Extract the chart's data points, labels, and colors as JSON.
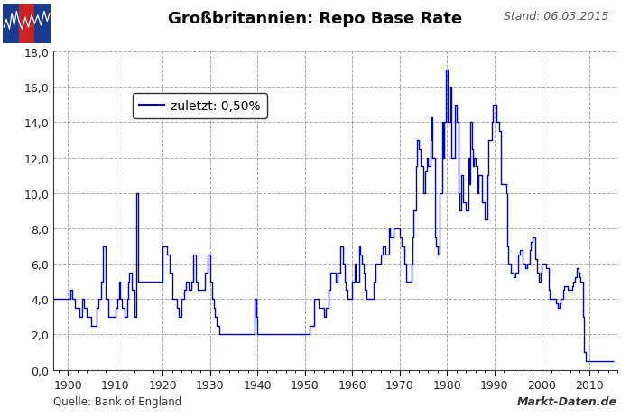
{
  "title": "Großbritannien: Repo Base Rate",
  "stand": "Stand: 06.03.2015",
  "source_left": "Quelle: Bank of England",
  "source_right": "Markt-Daten.de",
  "legend_text": "zuletzt: 0,50%",
  "ylim": [
    0,
    18
  ],
  "yticks": [
    0.0,
    2.0,
    4.0,
    6.0,
    8.0,
    10.0,
    12.0,
    14.0,
    16.0,
    18.0
  ],
  "xlim": [
    1897,
    2016
  ],
  "xticks": [
    1900,
    1910,
    1920,
    1930,
    1940,
    1950,
    1960,
    1970,
    1980,
    1990,
    2000,
    2010
  ],
  "line_color": "#0000cc",
  "bg_color": "#ffffff",
  "plot_bg_color": "#ffffff",
  "grid_color": "#aaaaaa",
  "title_color": "#000000",
  "stand_color": "#555555",
  "data": [
    [
      1897.0,
      4.0
    ],
    [
      1900.0,
      4.0
    ],
    [
      1900.5,
      4.5
    ],
    [
      1901.0,
      4.0
    ],
    [
      1901.5,
      3.5
    ],
    [
      1902.0,
      3.5
    ],
    [
      1902.5,
      3.0
    ],
    [
      1903.0,
      4.0
    ],
    [
      1903.5,
      3.5
    ],
    [
      1904.0,
      3.0
    ],
    [
      1905.0,
      2.5
    ],
    [
      1906.0,
      3.5
    ],
    [
      1906.5,
      4.0
    ],
    [
      1907.0,
      5.0
    ],
    [
      1907.5,
      7.0
    ],
    [
      1908.0,
      4.0
    ],
    [
      1908.5,
      3.0
    ],
    [
      1909.0,
      3.0
    ],
    [
      1909.5,
      3.0
    ],
    [
      1910.0,
      3.5
    ],
    [
      1910.5,
      4.0
    ],
    [
      1910.75,
      5.0
    ],
    [
      1911.0,
      4.0
    ],
    [
      1911.5,
      3.5
    ],
    [
      1912.0,
      3.0
    ],
    [
      1912.5,
      4.0
    ],
    [
      1912.75,
      5.0
    ],
    [
      1913.0,
      5.5
    ],
    [
      1913.5,
      4.5
    ],
    [
      1914.0,
      3.0
    ],
    [
      1914.5,
      10.0
    ],
    [
      1914.75,
      5.0
    ],
    [
      1915.0,
      5.0
    ],
    [
      1916.0,
      5.0
    ],
    [
      1917.0,
      5.0
    ],
    [
      1918.0,
      5.0
    ],
    [
      1919.0,
      5.0
    ],
    [
      1920.0,
      7.0
    ],
    [
      1921.0,
      6.5
    ],
    [
      1921.5,
      5.5
    ],
    [
      1922.0,
      4.0
    ],
    [
      1923.0,
      3.5
    ],
    [
      1923.5,
      3.0
    ],
    [
      1924.0,
      4.0
    ],
    [
      1924.5,
      4.5
    ],
    [
      1925.0,
      5.0
    ],
    [
      1925.5,
      4.5
    ],
    [
      1926.0,
      5.0
    ],
    [
      1926.5,
      6.5
    ],
    [
      1927.0,
      5.0
    ],
    [
      1927.5,
      4.5
    ],
    [
      1928.0,
      4.5
    ],
    [
      1929.0,
      5.5
    ],
    [
      1929.5,
      6.5
    ],
    [
      1930.0,
      5.0
    ],
    [
      1930.5,
      4.0
    ],
    [
      1930.75,
      3.5
    ],
    [
      1931.0,
      3.0
    ],
    [
      1931.5,
      2.5
    ],
    [
      1932.0,
      2.0
    ],
    [
      1932.5,
      2.0
    ],
    [
      1933.0,
      2.0
    ],
    [
      1935.0,
      2.0
    ],
    [
      1937.0,
      2.0
    ],
    [
      1939.0,
      2.0
    ],
    [
      1939.5,
      4.0
    ],
    [
      1939.75,
      3.0
    ],
    [
      1940.0,
      2.0
    ],
    [
      1942.0,
      2.0
    ],
    [
      1945.0,
      2.0
    ],
    [
      1950.0,
      2.0
    ],
    [
      1951.0,
      2.5
    ],
    [
      1951.5,
      2.5
    ],
    [
      1952.0,
      4.0
    ],
    [
      1952.5,
      4.0
    ],
    [
      1953.0,
      3.5
    ],
    [
      1954.0,
      3.0
    ],
    [
      1954.5,
      3.5
    ],
    [
      1955.0,
      4.5
    ],
    [
      1955.5,
      5.5
    ],
    [
      1956.0,
      5.5
    ],
    [
      1956.5,
      5.0
    ],
    [
      1957.0,
      5.5
    ],
    [
      1957.5,
      7.0
    ],
    [
      1958.0,
      6.0
    ],
    [
      1958.5,
      5.0
    ],
    [
      1958.75,
      4.5
    ],
    [
      1959.0,
      4.0
    ],
    [
      1959.5,
      4.0
    ],
    [
      1960.0,
      5.0
    ],
    [
      1960.5,
      6.0
    ],
    [
      1960.75,
      5.0
    ],
    [
      1961.0,
      5.0
    ],
    [
      1961.5,
      7.0
    ],
    [
      1961.75,
      6.5
    ],
    [
      1962.0,
      6.0
    ],
    [
      1962.5,
      5.5
    ],
    [
      1962.75,
      4.5
    ],
    [
      1963.0,
      4.0
    ],
    [
      1964.0,
      4.0
    ],
    [
      1964.5,
      5.0
    ],
    [
      1965.0,
      6.0
    ],
    [
      1965.5,
      6.0
    ],
    [
      1966.0,
      6.5
    ],
    [
      1966.5,
      7.0
    ],
    [
      1967.0,
      6.5
    ],
    [
      1967.5,
      6.5
    ],
    [
      1967.75,
      8.0
    ],
    [
      1968.0,
      7.5
    ],
    [
      1968.5,
      7.5
    ],
    [
      1968.75,
      8.0
    ],
    [
      1969.0,
      8.0
    ],
    [
      1969.5,
      8.0
    ],
    [
      1969.75,
      8.0
    ],
    [
      1970.0,
      7.5
    ],
    [
      1970.5,
      7.0
    ],
    [
      1971.0,
      6.0
    ],
    [
      1971.5,
      5.0
    ],
    [
      1972.0,
      5.0
    ],
    [
      1972.5,
      6.0
    ],
    [
      1972.75,
      7.5
    ],
    [
      1973.0,
      9.0
    ],
    [
      1973.5,
      11.5
    ],
    [
      1973.75,
      13.0
    ],
    [
      1974.0,
      12.5
    ],
    [
      1974.25,
      12.5
    ],
    [
      1974.5,
      11.5
    ],
    [
      1975.0,
      10.0
    ],
    [
      1975.5,
      11.25
    ],
    [
      1975.75,
      12.0
    ],
    [
      1976.0,
      11.5
    ],
    [
      1976.5,
      13.0
    ],
    [
      1976.75,
      14.25
    ],
    [
      1977.0,
      12.0
    ],
    [
      1977.5,
      7.5
    ],
    [
      1977.75,
      7.0
    ],
    [
      1978.0,
      6.5
    ],
    [
      1978.5,
      10.0
    ],
    [
      1979.0,
      14.0
    ],
    [
      1979.25,
      12.0
    ],
    [
      1979.5,
      14.0
    ],
    [
      1979.75,
      17.0
    ],
    [
      1980.0,
      17.0
    ],
    [
      1980.25,
      14.0
    ],
    [
      1980.5,
      14.0
    ],
    [
      1980.75,
      16.0
    ],
    [
      1981.0,
      12.0
    ],
    [
      1981.5,
      12.0
    ],
    [
      1981.75,
      15.0
    ],
    [
      1982.0,
      14.0
    ],
    [
      1982.5,
      10.0
    ],
    [
      1982.75,
      9.0
    ],
    [
      1983.0,
      11.0
    ],
    [
      1983.5,
      9.5
    ],
    [
      1984.0,
      9.0
    ],
    [
      1984.5,
      12.0
    ],
    [
      1984.75,
      10.5
    ],
    [
      1985.0,
      14.0
    ],
    [
      1985.25,
      12.5
    ],
    [
      1985.5,
      11.5
    ],
    [
      1985.75,
      12.0
    ],
    [
      1986.0,
      11.5
    ],
    [
      1986.5,
      10.0
    ],
    [
      1986.75,
      11.0
    ],
    [
      1987.0,
      11.0
    ],
    [
      1987.5,
      9.5
    ],
    [
      1987.75,
      9.5
    ],
    [
      1988.0,
      8.5
    ],
    [
      1988.5,
      11.0
    ],
    [
      1988.75,
      13.0
    ],
    [
      1989.0,
      13.0
    ],
    [
      1989.5,
      14.0
    ],
    [
      1989.75,
      15.0
    ],
    [
      1990.0,
      15.0
    ],
    [
      1990.5,
      14.0
    ],
    [
      1991.0,
      13.5
    ],
    [
      1991.5,
      10.5
    ],
    [
      1992.0,
      10.5
    ],
    [
      1992.5,
      10.0
    ],
    [
      1992.75,
      7.0
    ],
    [
      1993.0,
      6.0
    ],
    [
      1993.5,
      5.5
    ],
    [
      1994.0,
      5.25
    ],
    [
      1994.5,
      5.5
    ],
    [
      1995.0,
      6.5
    ],
    [
      1995.5,
      6.75
    ],
    [
      1996.0,
      6.0
    ],
    [
      1996.5,
      5.75
    ],
    [
      1997.0,
      6.0
    ],
    [
      1997.5,
      6.75
    ],
    [
      1997.75,
      7.25
    ],
    [
      1998.0,
      7.5
    ],
    [
      1998.5,
      7.5
    ],
    [
      1998.75,
      6.25
    ],
    [
      1999.0,
      5.5
    ],
    [
      1999.5,
      5.0
    ],
    [
      1999.75,
      5.5
    ],
    [
      2000.0,
      6.0
    ],
    [
      2000.5,
      6.0
    ],
    [
      2001.0,
      5.75
    ],
    [
      2001.5,
      4.5
    ],
    [
      2001.75,
      4.0
    ],
    [
      2002.0,
      4.0
    ],
    [
      2002.5,
      4.0
    ],
    [
      2003.0,
      3.75
    ],
    [
      2003.5,
      3.5
    ],
    [
      2003.75,
      3.75
    ],
    [
      2004.0,
      4.0
    ],
    [
      2004.5,
      4.5
    ],
    [
      2004.75,
      4.75
    ],
    [
      2005.0,
      4.75
    ],
    [
      2005.5,
      4.5
    ],
    [
      2006.0,
      4.5
    ],
    [
      2006.5,
      4.75
    ],
    [
      2006.75,
      5.0
    ],
    [
      2007.0,
      5.25
    ],
    [
      2007.5,
      5.75
    ],
    [
      2007.75,
      5.5
    ],
    [
      2008.0,
      5.25
    ],
    [
      2008.25,
      5.0
    ],
    [
      2008.5,
      5.0
    ],
    [
      2008.75,
      3.0
    ],
    [
      2009.0,
      1.0
    ],
    [
      2009.25,
      0.5
    ],
    [
      2010.0,
      0.5
    ],
    [
      2011.0,
      0.5
    ],
    [
      2012.0,
      0.5
    ],
    [
      2013.0,
      0.5
    ],
    [
      2014.0,
      0.5
    ],
    [
      2015.0,
      0.5
    ],
    [
      2015.25,
      0.5
    ]
  ]
}
